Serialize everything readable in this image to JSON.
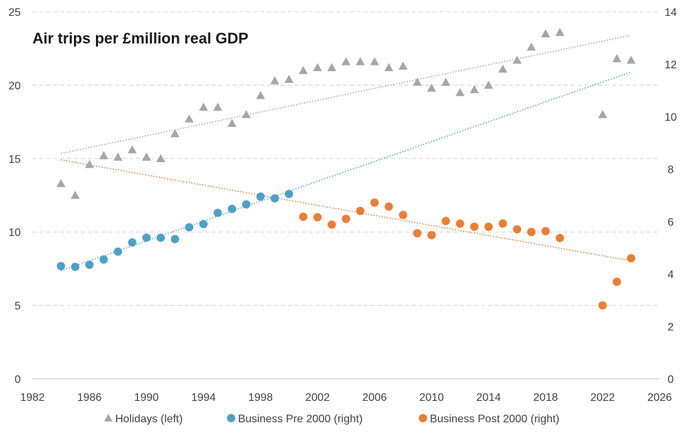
{
  "chart_data": {
    "type": "scatter",
    "title": "Air trips per £million real GDP",
    "x_axis": {
      "range": [
        1982,
        2026
      ],
      "ticks": [
        1982,
        1986,
        1990,
        1994,
        1998,
        2002,
        2006,
        2010,
        2014,
        2018,
        2022,
        2026
      ]
    },
    "y_left": {
      "range": [
        0,
        25
      ],
      "ticks": [
        0,
        5,
        10,
        15,
        20,
        25
      ]
    },
    "y_right": {
      "range": [
        0,
        14
      ],
      "ticks": [
        0,
        2,
        4,
        6,
        8,
        10,
        12,
        14
      ]
    },
    "grid": "horizontal dashed",
    "legend_position": "bottom",
    "series": [
      {
        "name": "Holidays (left)",
        "axis": "left",
        "marker": "triangle",
        "color": "#a6a6a6",
        "x": [
          1984,
          1985,
          1986,
          1987,
          1988,
          1989,
          1990,
          1991,
          1992,
          1993,
          1994,
          1995,
          1996,
          1997,
          1998,
          1999,
          2000,
          2001,
          2002,
          2003,
          2004,
          2005,
          2006,
          2007,
          2008,
          2009,
          2010,
          2011,
          2012,
          2013,
          2014,
          2015,
          2016,
          2017,
          2018,
          2019,
          2022,
          2023,
          2024
        ],
        "y": [
          13.3,
          12.5,
          14.6,
          15.2,
          15.1,
          15.6,
          15.1,
          15.0,
          16.7,
          17.7,
          18.5,
          18.5,
          17.4,
          18.0,
          19.3,
          20.3,
          20.4,
          21.0,
          21.2,
          21.2,
          21.6,
          21.6,
          21.6,
          21.2,
          21.3,
          20.2,
          19.8,
          20.2,
          19.5,
          19.7,
          20.0,
          21.1,
          21.7,
          22.6,
          23.5,
          23.6,
          18.0,
          21.8,
          21.7
        ]
      },
      {
        "name": "Business Pre 2000 (right)",
        "axis": "right",
        "marker": "circle",
        "color": "#4ba1c7",
        "x": [
          1984,
          1985,
          1986,
          1987,
          1988,
          1989,
          1990,
          1991,
          1992,
          1993,
          1994,
          1995,
          1996,
          1997,
          1998,
          1999,
          2000
        ],
        "y": [
          4.3,
          4.27,
          4.35,
          4.55,
          4.85,
          5.2,
          5.38,
          5.38,
          5.33,
          5.78,
          5.9,
          6.33,
          6.48,
          6.65,
          6.95,
          6.88,
          7.05
        ]
      },
      {
        "name": "Business Post 2000 (right)",
        "axis": "right",
        "marker": "circle",
        "color": "#ed7d31",
        "x": [
          2001,
          2002,
          2003,
          2004,
          2005,
          2006,
          2007,
          2008,
          2009,
          2010,
          2011,
          2012,
          2013,
          2014,
          2015,
          2016,
          2017,
          2018,
          2019,
          2022,
          2023,
          2024
        ],
        "y": [
          6.18,
          6.16,
          5.88,
          6.1,
          6.4,
          6.72,
          6.57,
          6.25,
          5.55,
          5.48,
          6.02,
          5.92,
          5.8,
          5.8,
          5.92,
          5.7,
          5.6,
          5.63,
          5.37,
          2.8,
          3.7,
          4.6
        ]
      }
    ],
    "trendlines": [
      {
        "series": "Holidays (left)",
        "axis": "left",
        "style": "dotted",
        "color": "#a6a6a6",
        "x": [
          1984,
          2024
        ],
        "y": [
          15.35,
          23.4
        ]
      },
      {
        "series": "Business Pre 2000 (right)",
        "axis": "right",
        "style": "dotted",
        "color": "#4ba1c7",
        "x": [
          1984,
          2024
        ],
        "y": [
          4.12,
          11.7
        ]
      },
      {
        "series": "Business Post 2000 (right)",
        "axis": "right",
        "style": "dotted",
        "color": "#ed7d31",
        "x": [
          1984,
          2024
        ],
        "y": [
          8.35,
          4.5
        ]
      }
    ]
  }
}
